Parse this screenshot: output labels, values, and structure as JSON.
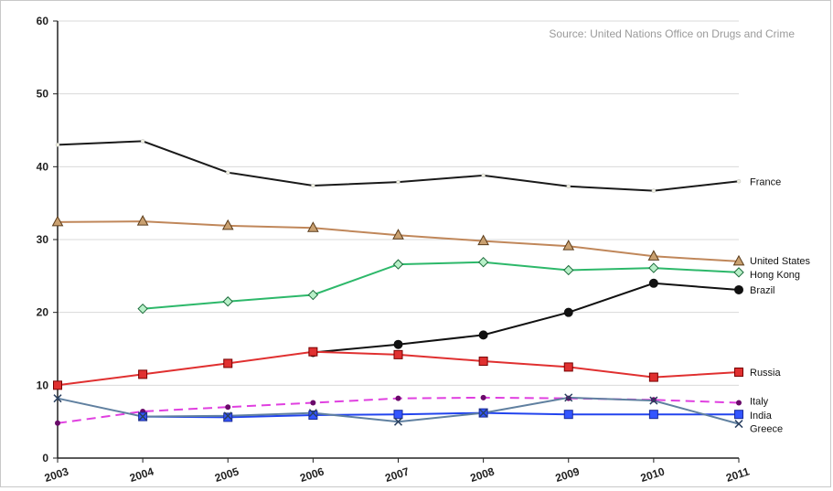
{
  "chart_data": {
    "type": "line",
    "title": "",
    "xlabel": "",
    "ylabel": "",
    "source_note": "Source: United Nations Office on Drugs and Crime",
    "x": [
      "2003",
      "2004",
      "2005",
      "2006",
      "2007",
      "2008",
      "2009",
      "2010",
      "2011"
    ],
    "ylim": [
      0,
      60
    ],
    "yticks": [
      "0",
      "10",
      "20",
      "30",
      "40",
      "50",
      "60"
    ],
    "grid": true,
    "legend": "inline labels at right end of each line",
    "series": [
      {
        "name": "France",
        "color": "#1a1a1a",
        "marker": "dot",
        "dashed": false,
        "values": [
          43.0,
          43.5,
          39.2,
          37.4,
          37.9,
          38.8,
          37.3,
          36.7,
          38.0
        ]
      },
      {
        "name": "United States",
        "color": "#c0875a",
        "marker": "triangle",
        "dashed": false,
        "values": [
          32.4,
          32.5,
          31.9,
          31.6,
          30.6,
          29.8,
          29.1,
          27.7,
          27.0
        ]
      },
      {
        "name": "Hong Kong",
        "color": "#2db86a",
        "marker": "diamond",
        "dashed": false,
        "values": [
          null,
          20.5,
          21.5,
          22.4,
          26.6,
          26.9,
          25.8,
          26.1,
          25.5
        ]
      },
      {
        "name": "Brazil",
        "color": "#111111",
        "marker": "circle",
        "dashed": false,
        "values": [
          null,
          null,
          null,
          14.5,
          15.6,
          16.9,
          20.0,
          24.0,
          23.1
        ]
      },
      {
        "name": "Russia",
        "color": "#e03030",
        "marker": "square",
        "dashed": false,
        "values": [
          10.0,
          11.5,
          13.0,
          14.6,
          14.2,
          13.3,
          12.5,
          11.1,
          11.8
        ]
      },
      {
        "name": "Italy",
        "color": "#e040e0",
        "marker": "small-dot",
        "dashed": true,
        "values": [
          4.8,
          6.4,
          7.0,
          7.6,
          8.2,
          8.3,
          8.2,
          8.0,
          7.6
        ]
      },
      {
        "name": "India",
        "color": "#2244ee",
        "marker": "square",
        "dashed": false,
        "values": [
          null,
          5.7,
          5.6,
          5.9,
          6.0,
          6.2,
          6.0,
          6.0,
          6.0
        ]
      },
      {
        "name": "Greece",
        "color": "#6080a0",
        "marker": "x",
        "dashed": false,
        "values": [
          8.2,
          5.7,
          5.8,
          6.2,
          5.0,
          6.2,
          8.3,
          7.9,
          4.7
        ]
      }
    ]
  }
}
